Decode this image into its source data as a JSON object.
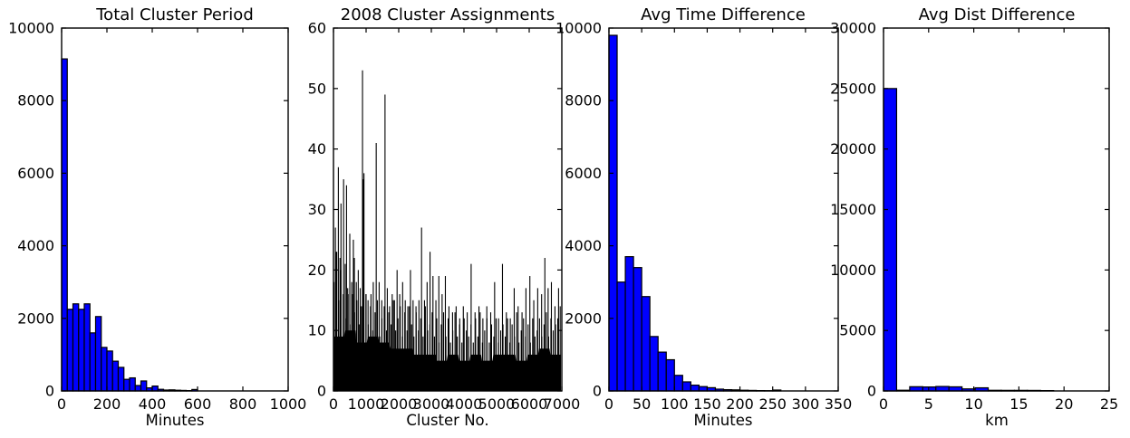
{
  "figure": {
    "background": "#ffffff",
    "text_color": "#000000",
    "accent_bar_color": "#0000ff",
    "edge_color": "#000000"
  },
  "chart_data": [
    {
      "type": "bar",
      "title": "Total Cluster Period",
      "xlabel": "Minutes",
      "ylabel": "",
      "xlim": [
        0,
        1000
      ],
      "ylim": [
        0,
        10000
      ],
      "xticks": [
        0,
        200,
        400,
        600,
        800,
        1000
      ],
      "yticks": [
        0,
        2000,
        4000,
        6000,
        8000,
        10000
      ],
      "grid": false,
      "legend": "none",
      "bar_color": "#0000ff",
      "bin_start": 0,
      "bin_width": 25,
      "values": [
        9150,
        2250,
        2400,
        2250,
        2400,
        1600,
        2050,
        1200,
        1100,
        820,
        650,
        320,
        360,
        150,
        275,
        85,
        135,
        45,
        25,
        30,
        20,
        15,
        10,
        40
      ]
    },
    {
      "type": "bar",
      "title": "2008 Cluster Assignments",
      "xlabel": "Cluster No.",
      "ylabel": "",
      "xlim": [
        0,
        7000
      ],
      "ylim": [
        0,
        60
      ],
      "xticks": [
        0,
        1000,
        2000,
        3000,
        4000,
        5000,
        6000,
        7000
      ],
      "yticks": [
        0,
        10,
        20,
        30,
        40,
        50,
        60
      ],
      "grid": false,
      "legend": "none",
      "bar_color": "#000000",
      "bin_start": 0,
      "bin_width": 70,
      "mass": [
        18,
        23,
        15,
        20,
        16,
        12,
        17,
        11,
        16,
        13,
        15,
        11,
        14,
        12,
        16,
        11,
        14,
        10,
        13,
        15,
        9,
        12,
        14,
        10,
        13,
        11,
        15,
        10,
        12,
        14,
        9,
        13,
        10,
        14,
        11,
        9,
        13,
        10,
        12,
        9,
        14,
        10,
        11,
        13,
        9,
        12,
        8,
        11,
        13,
        9,
        12,
        8,
        10,
        13,
        9,
        11,
        8,
        12,
        10,
        9,
        11,
        8,
        12,
        9,
        13,
        8,
        10,
        12,
        8,
        11,
        9,
        12,
        8,
        10,
        11,
        9,
        12,
        8,
        11,
        9,
        13,
        8,
        10,
        12,
        9,
        11,
        8,
        12,
        9,
        10,
        12,
        9,
        11,
        13,
        9,
        12,
        10,
        11,
        12
      ],
      "base": [
        9,
        10,
        8,
        9,
        8,
        7,
        7,
        6,
        6,
        5,
        6,
        5,
        6,
        5,
        6,
        6,
        5,
        6,
        7,
        6
      ],
      "spikes": [
        [
          60,
          27
        ],
        [
          100,
          23
        ],
        [
          150,
          37
        ],
        [
          200,
          22
        ],
        [
          230,
          31
        ],
        [
          310,
          35
        ],
        [
          360,
          21
        ],
        [
          400,
          34
        ],
        [
          450,
          16
        ],
        [
          500,
          26
        ],
        [
          560,
          18
        ],
        [
          610,
          25
        ],
        [
          640,
          22
        ],
        [
          700,
          18
        ],
        [
          760,
          20
        ],
        [
          820,
          17
        ],
        [
          890,
          53
        ],
        [
          915,
          35
        ],
        [
          935,
          36
        ],
        [
          1000,
          16
        ],
        [
          1060,
          15
        ],
        [
          1150,
          16
        ],
        [
          1220,
          18
        ],
        [
          1310,
          41
        ],
        [
          1400,
          18
        ],
        [
          1480,
          15
        ],
        [
          1580,
          49
        ],
        [
          1650,
          17
        ],
        [
          1720,
          14
        ],
        [
          1800,
          16
        ],
        [
          1870,
          15
        ],
        [
          1950,
          20
        ],
        [
          2030,
          16
        ],
        [
          2120,
          18
        ],
        [
          2200,
          15
        ],
        [
          2280,
          14
        ],
        [
          2360,
          20
        ],
        [
          2440,
          15
        ],
        [
          2530,
          14
        ],
        [
          2620,
          15
        ],
        [
          2700,
          27
        ],
        [
          2790,
          15
        ],
        [
          2870,
          18
        ],
        [
          2960,
          23
        ],
        [
          3050,
          19
        ],
        [
          3140,
          15
        ],
        [
          3230,
          19
        ],
        [
          3330,
          16
        ],
        [
          3430,
          19
        ],
        [
          3540,
          14
        ],
        [
          3650,
          13
        ],
        [
          3760,
          14
        ],
        [
          3870,
          12
        ],
        [
          3980,
          14
        ],
        [
          4100,
          13
        ],
        [
          4220,
          21
        ],
        [
          4340,
          13
        ],
        [
          4460,
          14
        ],
        [
          4580,
          12
        ],
        [
          4700,
          14
        ],
        [
          4820,
          13
        ],
        [
          4940,
          18
        ],
        [
          5060,
          12
        ],
        [
          5180,
          21
        ],
        [
          5300,
          13
        ],
        [
          5420,
          12
        ],
        [
          5540,
          17
        ],
        [
          5660,
          14
        ],
        [
          5780,
          13
        ],
        [
          5900,
          17
        ],
        [
          6020,
          19
        ],
        [
          6140,
          15
        ],
        [
          6260,
          17
        ],
        [
          6380,
          16
        ],
        [
          6480,
          22
        ],
        [
          6580,
          17
        ],
        [
          6680,
          18
        ],
        [
          6790,
          14
        ],
        [
          6900,
          17
        ],
        [
          6950,
          14
        ]
      ]
    },
    {
      "type": "bar",
      "title": "Avg Time Difference",
      "xlabel": "Minutes",
      "ylabel": "",
      "xlim": [
        0,
        350
      ],
      "ylim": [
        0,
        10000
      ],
      "xticks": [
        0,
        50,
        100,
        150,
        200,
        250,
        300,
        350
      ],
      "yticks": [
        0,
        2000,
        4000,
        6000,
        8000,
        10000
      ],
      "grid": false,
      "legend": "none",
      "bar_color": "#0000ff",
      "bin_start": 0,
      "bin_width": 12.5,
      "values": [
        9800,
        3000,
        3700,
        3400,
        2600,
        1500,
        1070,
        860,
        430,
        250,
        160,
        120,
        90,
        50,
        35,
        30,
        20,
        15,
        10,
        8,
        25
      ]
    },
    {
      "type": "bar",
      "title": "Avg Dist Difference",
      "xlabel": "km",
      "ylabel": "",
      "xlim": [
        0,
        25
      ],
      "ylim": [
        0,
        30000
      ],
      "xticks": [
        0,
        5,
        10,
        15,
        20,
        25
      ],
      "yticks": [
        0,
        5000,
        10000,
        15000,
        20000,
        25000,
        30000
      ],
      "grid": false,
      "legend": "none",
      "bar_color": "#0000ff",
      "bin_start": 0,
      "bin_width": 1.45,
      "values": [
        25000,
        60,
        350,
        330,
        370,
        340,
        170,
        260,
        55,
        50,
        50,
        45,
        30
      ]
    }
  ]
}
